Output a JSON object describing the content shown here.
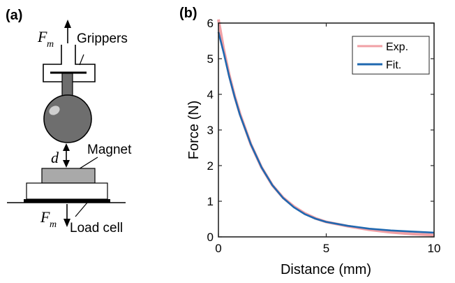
{
  "panel_a": {
    "label": "(a)",
    "force_symbol": "F",
    "force_subscript": "m",
    "grippers_label": "Grippers",
    "distance_symbol": "d",
    "magnet_label": "Magnet",
    "load_cell_label": "Load cell"
  },
  "panel_b": {
    "label": "(b)"
  },
  "colors": {
    "exp": "#f0a0a5",
    "fit": "#1f68b0",
    "ball": "#6e6e6e",
    "magnet": "#a9a9a9"
  },
  "chart_data": {
    "type": "line",
    "title": "",
    "xlabel": "Distance (mm)",
    "ylabel": "Force (N)",
    "xlim": [
      0,
      10
    ],
    "ylim": [
      0,
      6
    ],
    "xticks": [
      0,
      5,
      10
    ],
    "yticks": [
      0,
      1,
      2,
      3,
      4,
      5,
      6
    ],
    "grid": false,
    "legend_position": "top-right",
    "x": [
      0,
      0.25,
      0.5,
      0.75,
      1,
      1.5,
      2,
      2.5,
      3,
      3.5,
      4,
      4.5,
      5,
      6,
      7,
      8,
      9,
      10
    ],
    "series": [
      {
        "name": "Exp.",
        "values": [
          6.1,
          5.25,
          4.55,
          3.95,
          3.45,
          2.6,
          1.95,
          1.45,
          1.1,
          0.85,
          0.66,
          0.52,
          0.42,
          0.3,
          0.2,
          0.13,
          0.08,
          0.05
        ]
      },
      {
        "name": "Fit.",
        "values": [
          5.75,
          5.15,
          4.5,
          3.93,
          3.42,
          2.6,
          1.95,
          1.45,
          1.09,
          0.83,
          0.64,
          0.51,
          0.42,
          0.31,
          0.23,
          0.18,
          0.15,
          0.12
        ]
      }
    ]
  }
}
